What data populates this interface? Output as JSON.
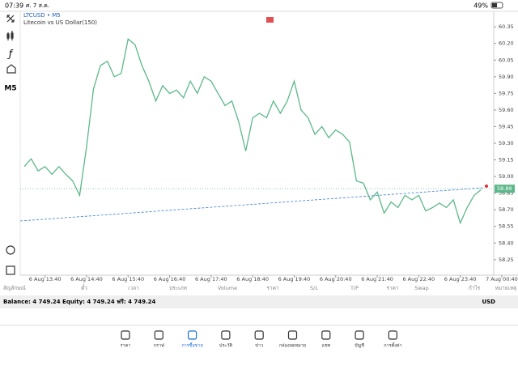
{
  "status_bar": {
    "time": "07:39",
    "date": "ศ. 7 ส.ค.",
    "battery": "49%"
  },
  "toolbar": {
    "timeframe": "M5"
  },
  "chart_data": {
    "type": "line",
    "title": "LTCUSD • M5",
    "subtitle": "Litecoin vs US Dollar(150)",
    "categories": [
      null,
      null,
      null,
      "6 Aug 13:40",
      null,
      null,
      null,
      null,
      null,
      "6 Aug 14:40",
      null,
      null,
      null,
      null,
      null,
      "6 Aug 15:40",
      null,
      null,
      null,
      null,
      null,
      "6 Aug 16:40",
      null,
      null,
      null,
      null,
      null,
      "6 Aug 17:40",
      null,
      null,
      null,
      null,
      null,
      "6 Aug 18:40",
      null,
      null,
      null,
      null,
      null,
      "6 Aug 19:40",
      null,
      null,
      null,
      null,
      null,
      "6 Aug 20:40",
      null,
      null,
      null,
      null,
      null,
      "6 Aug 21:40",
      null,
      null,
      null,
      null,
      null,
      "6 Aug 22:40",
      null,
      null,
      null,
      null,
      null,
      "6 Aug 23:40",
      null,
      null,
      null,
      null,
      null,
      "7 Aug 00:40"
    ],
    "values": [
      59.09,
      59.16,
      59.05,
      59.09,
      59.02,
      59.09,
      59.02,
      58.96,
      58.83,
      59.27,
      59.79,
      60.0,
      60.04,
      59.9,
      59.93,
      60.24,
      60.19,
      60.0,
      59.86,
      59.68,
      59.82,
      59.75,
      59.78,
      59.71,
      59.86,
      59.75,
      59.9,
      59.86,
      59.75,
      59.64,
      59.68,
      59.49,
      59.23,
      59.53,
      59.57,
      59.53,
      59.68,
      59.57,
      59.68,
      59.86,
      59.6,
      59.53,
      59.38,
      59.45,
      59.35,
      59.42,
      59.38,
      59.31,
      58.96,
      58.94,
      58.79,
      58.86,
      58.67,
      58.77,
      58.72,
      58.83,
      58.79,
      58.83,
      58.69,
      58.72,
      58.76,
      58.72,
      58.79,
      58.58,
      58.72,
      58.83,
      58.88,
      null,
      null,
      null
    ],
    "color": "#5cb88a",
    "current_price": 58.89,
    "ylim": [
      58.11,
      60.49
    ],
    "yticks": [
      58.25,
      {
        "value": 58.4,
        "label": "58.40"
      },
      58.55,
      {
        "value": 58.7,
        "label": "58.70"
      },
      58.85,
      {
        "value": 59.0,
        "label": "59.00"
      },
      59.15,
      {
        "value": 59.3,
        "label": "59.30"
      },
      59.45,
      {
        "value": 59.6,
        "label": "59.60"
      },
      59.75,
      {
        "value": 59.9,
        "label": "59.90"
      },
      60.05,
      {
        "value": 60.2,
        "label": "60.20"
      },
      60.35
    ]
  },
  "positions_table": {
    "columns": [
      "สัญลักษณ์",
      "ตั๋ว",
      "เวลา",
      "ประเภท",
      "Volume",
      "ราคา",
      "S/L",
      "T/P",
      "ราคา",
      "Swap",
      "กำไร",
      "หมายเหตุ"
    ]
  },
  "account": {
    "summary": "Balance: 4 749.24 Equity: 4 749.24 ฟรี: 4 749.24",
    "currency": "USD"
  },
  "tab_bar": {
    "tabs": [
      "ราคา",
      "กราฟ",
      "การซื้อขาย",
      "ประวัติ",
      "ข่าว",
      "กล่องจดหมาย",
      "แชท",
      "บัญชี",
      "การตั้งค่า"
    ]
  }
}
